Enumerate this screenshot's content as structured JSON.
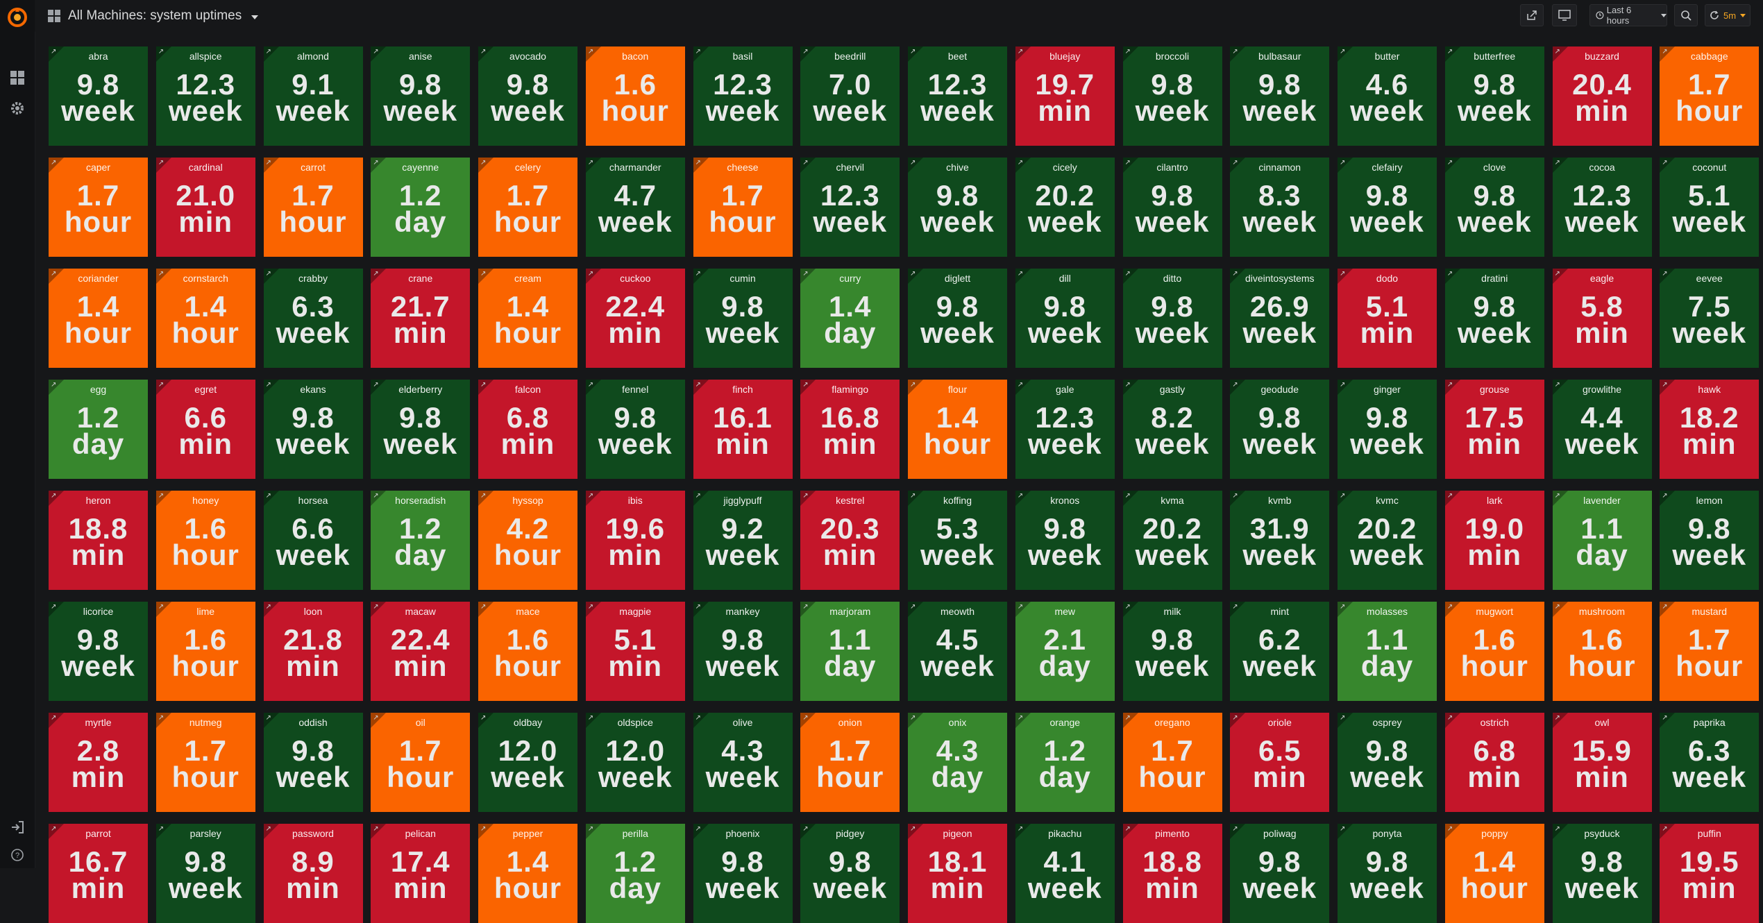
{
  "header": {
    "title": "All Machines: system uptimes",
    "time_range": "Last 6 hours",
    "refresh": "5m"
  },
  "icons": {
    "logo": "grafana-logo-icon",
    "dashboards": "dashboards-icon",
    "settings": "gear-icon",
    "signin": "sign-in-icon",
    "help": "help-icon",
    "share": "share-icon",
    "tv": "tv-icon",
    "clock": "clock-icon",
    "zoom": "zoom-out-icon",
    "refresh": "refresh-icon"
  },
  "colors": {
    "green": "#0f4a1d",
    "light_green": "#37872d",
    "orange": "#fa6400",
    "red": "#c4162a",
    "background": "#161719"
  },
  "panels": [
    {
      "name": "abra",
      "value": "9.8",
      "unit": "week",
      "status": "green"
    },
    {
      "name": "allspice",
      "value": "12.3",
      "unit": "week",
      "status": "green"
    },
    {
      "name": "almond",
      "value": "9.1",
      "unit": "week",
      "status": "green"
    },
    {
      "name": "anise",
      "value": "9.8",
      "unit": "week",
      "status": "green"
    },
    {
      "name": "avocado",
      "value": "9.8",
      "unit": "week",
      "status": "green"
    },
    {
      "name": "bacon",
      "value": "1.6",
      "unit": "hour",
      "status": "orange"
    },
    {
      "name": "basil",
      "value": "12.3",
      "unit": "week",
      "status": "green"
    },
    {
      "name": "beedrill",
      "value": "7.0",
      "unit": "week",
      "status": "green"
    },
    {
      "name": "beet",
      "value": "12.3",
      "unit": "week",
      "status": "green"
    },
    {
      "name": "bluejay",
      "value": "19.7",
      "unit": "min",
      "status": "red"
    },
    {
      "name": "broccoli",
      "value": "9.8",
      "unit": "week",
      "status": "green"
    },
    {
      "name": "bulbasaur",
      "value": "9.8",
      "unit": "week",
      "status": "green"
    },
    {
      "name": "butter",
      "value": "4.6",
      "unit": "week",
      "status": "green"
    },
    {
      "name": "butterfree",
      "value": "9.8",
      "unit": "week",
      "status": "green"
    },
    {
      "name": "buzzard",
      "value": "20.4",
      "unit": "min",
      "status": "red"
    },
    {
      "name": "cabbage",
      "value": "1.7",
      "unit": "hour",
      "status": "orange"
    },
    {
      "name": "caper",
      "value": "1.7",
      "unit": "hour",
      "status": "orange"
    },
    {
      "name": "cardinal",
      "value": "21.0",
      "unit": "min",
      "status": "red"
    },
    {
      "name": "carrot",
      "value": "1.7",
      "unit": "hour",
      "status": "orange"
    },
    {
      "name": "cayenne",
      "value": "1.2",
      "unit": "day",
      "status": "light"
    },
    {
      "name": "celery",
      "value": "1.7",
      "unit": "hour",
      "status": "orange"
    },
    {
      "name": "charmander",
      "value": "4.7",
      "unit": "week",
      "status": "green"
    },
    {
      "name": "cheese",
      "value": "1.7",
      "unit": "hour",
      "status": "orange"
    },
    {
      "name": "chervil",
      "value": "12.3",
      "unit": "week",
      "status": "green"
    },
    {
      "name": "chive",
      "value": "9.8",
      "unit": "week",
      "status": "green"
    },
    {
      "name": "cicely",
      "value": "20.2",
      "unit": "week",
      "status": "green"
    },
    {
      "name": "cilantro",
      "value": "9.8",
      "unit": "week",
      "status": "green"
    },
    {
      "name": "cinnamon",
      "value": "8.3",
      "unit": "week",
      "status": "green"
    },
    {
      "name": "clefairy",
      "value": "9.8",
      "unit": "week",
      "status": "green"
    },
    {
      "name": "clove",
      "value": "9.8",
      "unit": "week",
      "status": "green"
    },
    {
      "name": "cocoa",
      "value": "12.3",
      "unit": "week",
      "status": "green"
    },
    {
      "name": "coconut",
      "value": "5.1",
      "unit": "week",
      "status": "green"
    },
    {
      "name": "coriander",
      "value": "1.4",
      "unit": "hour",
      "status": "orange"
    },
    {
      "name": "cornstarch",
      "value": "1.4",
      "unit": "hour",
      "status": "orange"
    },
    {
      "name": "crabby",
      "value": "6.3",
      "unit": "week",
      "status": "green"
    },
    {
      "name": "crane",
      "value": "21.7",
      "unit": "min",
      "status": "red"
    },
    {
      "name": "cream",
      "value": "1.4",
      "unit": "hour",
      "status": "orange"
    },
    {
      "name": "cuckoo",
      "value": "22.4",
      "unit": "min",
      "status": "red"
    },
    {
      "name": "cumin",
      "value": "9.8",
      "unit": "week",
      "status": "green"
    },
    {
      "name": "curry",
      "value": "1.4",
      "unit": "day",
      "status": "light"
    },
    {
      "name": "diglett",
      "value": "9.8",
      "unit": "week",
      "status": "green"
    },
    {
      "name": "dill",
      "value": "9.8",
      "unit": "week",
      "status": "green"
    },
    {
      "name": "ditto",
      "value": "9.8",
      "unit": "week",
      "status": "green"
    },
    {
      "name": "diveintosystems",
      "value": "26.9",
      "unit": "week",
      "status": "green"
    },
    {
      "name": "dodo",
      "value": "5.1",
      "unit": "min",
      "status": "red"
    },
    {
      "name": "dratini",
      "value": "9.8",
      "unit": "week",
      "status": "green"
    },
    {
      "name": "eagle",
      "value": "5.8",
      "unit": "min",
      "status": "red"
    },
    {
      "name": "eevee",
      "value": "7.5",
      "unit": "week",
      "status": "green"
    },
    {
      "name": "egg",
      "value": "1.2",
      "unit": "day",
      "status": "light"
    },
    {
      "name": "egret",
      "value": "6.6",
      "unit": "min",
      "status": "red"
    },
    {
      "name": "ekans",
      "value": "9.8",
      "unit": "week",
      "status": "green"
    },
    {
      "name": "elderberry",
      "value": "9.8",
      "unit": "week",
      "status": "green"
    },
    {
      "name": "falcon",
      "value": "6.8",
      "unit": "min",
      "status": "red"
    },
    {
      "name": "fennel",
      "value": "9.8",
      "unit": "week",
      "status": "green"
    },
    {
      "name": "finch",
      "value": "16.1",
      "unit": "min",
      "status": "red"
    },
    {
      "name": "flamingo",
      "value": "16.8",
      "unit": "min",
      "status": "red"
    },
    {
      "name": "flour",
      "value": "1.4",
      "unit": "hour",
      "status": "orange"
    },
    {
      "name": "gale",
      "value": "12.3",
      "unit": "week",
      "status": "green"
    },
    {
      "name": "gastly",
      "value": "8.2",
      "unit": "week",
      "status": "green"
    },
    {
      "name": "geodude",
      "value": "9.8",
      "unit": "week",
      "status": "green"
    },
    {
      "name": "ginger",
      "value": "9.8",
      "unit": "week",
      "status": "green"
    },
    {
      "name": "grouse",
      "value": "17.5",
      "unit": "min",
      "status": "red"
    },
    {
      "name": "growlithe",
      "value": "4.4",
      "unit": "week",
      "status": "green"
    },
    {
      "name": "hawk",
      "value": "18.2",
      "unit": "min",
      "status": "red"
    },
    {
      "name": "heron",
      "value": "18.8",
      "unit": "min",
      "status": "red"
    },
    {
      "name": "honey",
      "value": "1.6",
      "unit": "hour",
      "status": "orange"
    },
    {
      "name": "horsea",
      "value": "6.6",
      "unit": "week",
      "status": "green"
    },
    {
      "name": "horseradish",
      "value": "1.2",
      "unit": "day",
      "status": "light"
    },
    {
      "name": "hyssop",
      "value": "4.2",
      "unit": "hour",
      "status": "orange"
    },
    {
      "name": "ibis",
      "value": "19.6",
      "unit": "min",
      "status": "red"
    },
    {
      "name": "jigglypuff",
      "value": "9.2",
      "unit": "week",
      "status": "green"
    },
    {
      "name": "kestrel",
      "value": "20.3",
      "unit": "min",
      "status": "red"
    },
    {
      "name": "koffing",
      "value": "5.3",
      "unit": "week",
      "status": "green"
    },
    {
      "name": "kronos",
      "value": "9.8",
      "unit": "week",
      "status": "green"
    },
    {
      "name": "kvma",
      "value": "20.2",
      "unit": "week",
      "status": "green"
    },
    {
      "name": "kvmb",
      "value": "31.9",
      "unit": "week",
      "status": "green"
    },
    {
      "name": "kvmc",
      "value": "20.2",
      "unit": "week",
      "status": "green"
    },
    {
      "name": "lark",
      "value": "19.0",
      "unit": "min",
      "status": "red"
    },
    {
      "name": "lavender",
      "value": "1.1",
      "unit": "day",
      "status": "light"
    },
    {
      "name": "lemon",
      "value": "9.8",
      "unit": "week",
      "status": "green"
    },
    {
      "name": "licorice",
      "value": "9.8",
      "unit": "week",
      "status": "green"
    },
    {
      "name": "lime",
      "value": "1.6",
      "unit": "hour",
      "status": "orange"
    },
    {
      "name": "loon",
      "value": "21.8",
      "unit": "min",
      "status": "red"
    },
    {
      "name": "macaw",
      "value": "22.4",
      "unit": "min",
      "status": "red"
    },
    {
      "name": "mace",
      "value": "1.6",
      "unit": "hour",
      "status": "orange"
    },
    {
      "name": "magpie",
      "value": "5.1",
      "unit": "min",
      "status": "red"
    },
    {
      "name": "mankey",
      "value": "9.8",
      "unit": "week",
      "status": "green"
    },
    {
      "name": "marjoram",
      "value": "1.1",
      "unit": "day",
      "status": "light"
    },
    {
      "name": "meowth",
      "value": "4.5",
      "unit": "week",
      "status": "green"
    },
    {
      "name": "mew",
      "value": "2.1",
      "unit": "day",
      "status": "light"
    },
    {
      "name": "milk",
      "value": "9.8",
      "unit": "week",
      "status": "green"
    },
    {
      "name": "mint",
      "value": "6.2",
      "unit": "week",
      "status": "green"
    },
    {
      "name": "molasses",
      "value": "1.1",
      "unit": "day",
      "status": "light"
    },
    {
      "name": "mugwort",
      "value": "1.6",
      "unit": "hour",
      "status": "orange"
    },
    {
      "name": "mushroom",
      "value": "1.6",
      "unit": "hour",
      "status": "orange"
    },
    {
      "name": "mustard",
      "value": "1.7",
      "unit": "hour",
      "status": "orange"
    },
    {
      "name": "myrtle",
      "value": "2.8",
      "unit": "min",
      "status": "red"
    },
    {
      "name": "nutmeg",
      "value": "1.7",
      "unit": "hour",
      "status": "orange"
    },
    {
      "name": "oddish",
      "value": "9.8",
      "unit": "week",
      "status": "green"
    },
    {
      "name": "oil",
      "value": "1.7",
      "unit": "hour",
      "status": "orange"
    },
    {
      "name": "oldbay",
      "value": "12.0",
      "unit": "week",
      "status": "green"
    },
    {
      "name": "oldspice",
      "value": "12.0",
      "unit": "week",
      "status": "green"
    },
    {
      "name": "olive",
      "value": "4.3",
      "unit": "week",
      "status": "green"
    },
    {
      "name": "onion",
      "value": "1.7",
      "unit": "hour",
      "status": "orange"
    },
    {
      "name": "onix",
      "value": "4.3",
      "unit": "day",
      "status": "light"
    },
    {
      "name": "orange",
      "value": "1.2",
      "unit": "day",
      "status": "light"
    },
    {
      "name": "oregano",
      "value": "1.7",
      "unit": "hour",
      "status": "orange"
    },
    {
      "name": "oriole",
      "value": "6.5",
      "unit": "min",
      "status": "red"
    },
    {
      "name": "osprey",
      "value": "9.8",
      "unit": "week",
      "status": "green"
    },
    {
      "name": "ostrich",
      "value": "6.8",
      "unit": "min",
      "status": "red"
    },
    {
      "name": "owl",
      "value": "15.9",
      "unit": "min",
      "status": "red"
    },
    {
      "name": "paprika",
      "value": "6.3",
      "unit": "week",
      "status": "green"
    },
    {
      "name": "parrot",
      "value": "16.7",
      "unit": "min",
      "status": "red"
    },
    {
      "name": "parsley",
      "value": "9.8",
      "unit": "week",
      "status": "green"
    },
    {
      "name": "password",
      "value": "8.9",
      "unit": "min",
      "status": "red"
    },
    {
      "name": "pelican",
      "value": "17.4",
      "unit": "min",
      "status": "red"
    },
    {
      "name": "pepper",
      "value": "1.4",
      "unit": "hour",
      "status": "orange"
    },
    {
      "name": "perilla",
      "value": "1.2",
      "unit": "day",
      "status": "light"
    },
    {
      "name": "phoenix",
      "value": "9.8",
      "unit": "week",
      "status": "green"
    },
    {
      "name": "pidgey",
      "value": "9.8",
      "unit": "week",
      "status": "green"
    },
    {
      "name": "pigeon",
      "value": "18.1",
      "unit": "min",
      "status": "red"
    },
    {
      "name": "pikachu",
      "value": "4.1",
      "unit": "week",
      "status": "green"
    },
    {
      "name": "pimento",
      "value": "18.8",
      "unit": "min",
      "status": "red"
    },
    {
      "name": "poliwag",
      "value": "9.8",
      "unit": "week",
      "status": "green"
    },
    {
      "name": "ponyta",
      "value": "9.8",
      "unit": "week",
      "status": "green"
    },
    {
      "name": "poppy",
      "value": "1.4",
      "unit": "hour",
      "status": "orange"
    },
    {
      "name": "psyduck",
      "value": "9.8",
      "unit": "week",
      "status": "green"
    },
    {
      "name": "puffin",
      "value": "19.5",
      "unit": "min",
      "status": "red"
    }
  ]
}
